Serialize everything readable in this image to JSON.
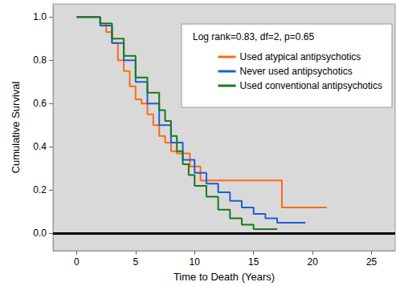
{
  "chart_data": {
    "type": "line",
    "line_style": "step",
    "marker": "none",
    "x_label": "Time to Death (Years)",
    "y_label": "Cumulative Survival",
    "annotation": "Log rank=0.83, df=2, p=0.65",
    "legend": "top-right",
    "grid": false,
    "xlim": [
      -2,
      27
    ],
    "xticks": [
      0,
      5,
      10,
      15,
      20,
      25
    ],
    "ylim": [
      -0.08,
      1.06
    ],
    "yticks": [
      {
        "value": 0,
        "label": "0.0"
      },
      {
        "value": 0.2,
        "label": "0.2"
      },
      {
        "value": 0.4,
        "label": "0.4"
      },
      {
        "value": 0.6,
        "label": "0.6"
      },
      {
        "value": 0.8,
        "label": "0.8"
      },
      {
        "value": 1,
        "label": "1.0"
      }
    ],
    "series": [
      {
        "name": "Used atypical antipsychotics",
        "color": "#ff6a13",
        "x": [
          0,
          1.5,
          2,
          2.5,
          3,
          3.5,
          4,
          4.5,
          5,
          5.5,
          6,
          6.5,
          7,
          7.5,
          8,
          8.5,
          9.6,
          10.5,
          17.4,
          21.2
        ],
        "values": [
          1,
          1,
          0.97,
          0.93,
          0.88,
          0.8,
          0.75,
          0.68,
          0.62,
          0.6,
          0.55,
          0.5,
          0.45,
          0.42,
          0.38,
          0.37,
          0.31,
          0.245,
          0.12,
          0.12
        ]
      },
      {
        "name": "Never used antipsychotics",
        "color": "#1a5fd6",
        "x": [
          0,
          1,
          2,
          3,
          4,
          5,
          6,
          7,
          8,
          9,
          10,
          11,
          12,
          13,
          14,
          15,
          16,
          17,
          19.4
        ],
        "values": [
          1,
          1,
          0.96,
          0.88,
          0.8,
          0.7,
          0.6,
          0.5,
          0.42,
          0.34,
          0.28,
          0.23,
          0.19,
          0.15,
          0.12,
          0.09,
          0.07,
          0.05,
          0.05
        ]
      },
      {
        "name": "Used conventional antipsychotics",
        "color": "#1a7a1a",
        "x": [
          0,
          1.5,
          2,
          3,
          4,
          5,
          6,
          7,
          7.5,
          8,
          8.5,
          9,
          9.5,
          10,
          11,
          12,
          13,
          14,
          15,
          17
        ],
        "values": [
          1,
          1,
          0.97,
          0.9,
          0.82,
          0.72,
          0.65,
          0.57,
          0.52,
          0.45,
          0.38,
          0.32,
          0.27,
          0.22,
          0.17,
          0.11,
          0.07,
          0.04,
          0.02,
          0.02
        ]
      }
    ]
  }
}
